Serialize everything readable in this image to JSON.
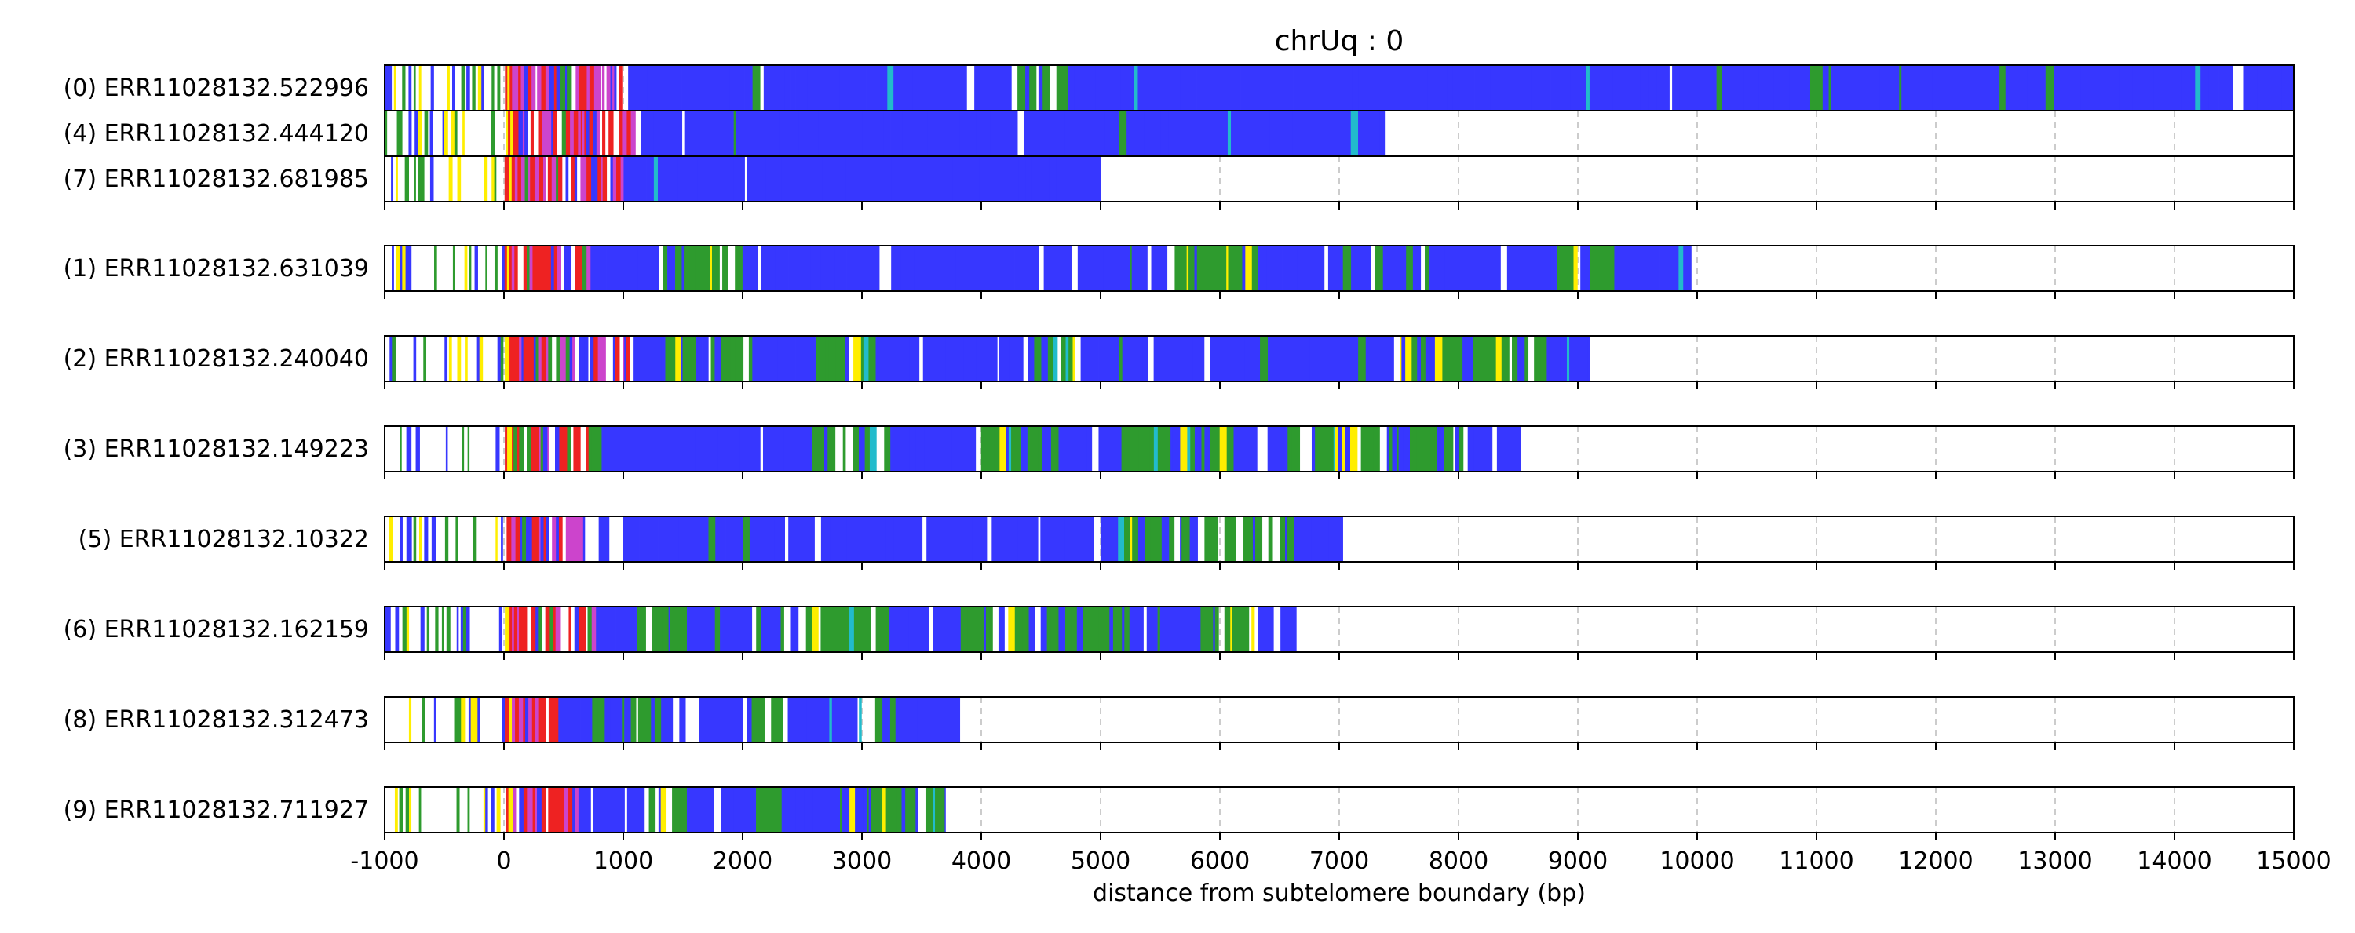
{
  "chart_data": {
    "type": "heatmap",
    "title": "chrUq : 0",
    "xlabel": "distance from subtelomere boundary (bp)",
    "ylabel": "",
    "xlim": [
      -1000,
      15000
    ],
    "xticks": [
      "-1000",
      "0",
      "1000",
      "2000",
      "3000",
      "4000",
      "5000",
      "6000",
      "7000",
      "8000",
      "9000",
      "10000",
      "11000",
      "12000",
      "13000",
      "14000",
      "15000"
    ],
    "grid": "vertical dashed at each x tick",
    "colors": {
      "blue": "#3737ff",
      "green": "#2e9b2e",
      "red": "#ee2222",
      "magenta": "#cc44cc",
      "yellow": "#ffee00",
      "cyan": "#22bbcc",
      "white": "#ffffff"
    },
    "groups": [
      [
        {
          "label": "(0) ERR11028132.522996",
          "end": 15000,
          "profile": {
            "dense_start": 1000,
            "green_zones": [
              [
                4200,
                4700
              ]
            ],
            "white_density": 0.15
          }
        },
        {
          "label": "(4) ERR11028132.444120",
          "end": 7380,
          "profile": {
            "dense_start": 1100,
            "green_zones": [],
            "white_density": 0.15
          }
        },
        {
          "label": "(7) ERR11028132.681985",
          "end": 5000,
          "profile": {
            "dense_start": 1000,
            "green_zones": [],
            "white_density": 0.15
          }
        }
      ],
      [
        {
          "label": "(1) ERR11028132.631039",
          "end": 9950,
          "profile": {
            "dense_start": 700,
            "green_zones": [
              [
                1200,
                1950
              ],
              [
                5500,
                6300
              ],
              [
                8800,
                9300
              ]
            ],
            "white_density": 0.35
          }
        }
      ],
      [
        {
          "label": "(2) ERR11028132.240040",
          "end": 9100,
          "profile": {
            "dense_start": 1050,
            "green_zones": [
              [
                1300,
                2000
              ],
              [
                2600,
                3100
              ],
              [
                4300,
                4800
              ],
              [
                7300,
                8700
              ]
            ],
            "white_density": 0.45
          }
        }
      ],
      [
        {
          "label": "(3) ERR11028132.149223",
          "end": 8520,
          "profile": {
            "dense_start": 750,
            "green_zones": [
              [
                2400,
                3200
              ],
              [
                3800,
                4600
              ],
              [
                5000,
                6100
              ],
              [
                6500,
                8000
              ]
            ],
            "white_density": 0.35
          }
        }
      ],
      [
        {
          "label": "(5) ERR11028132.10322",
          "end": 7030,
          "profile": {
            "dense_start": 700,
            "green_zones": [
              [
                5200,
                6600
              ]
            ],
            "white_density": 0.5
          }
        }
      ],
      [
        {
          "label": "(6) ERR11028132.162159",
          "end": 6640,
          "profile": {
            "dense_start": 750,
            "green_zones": [
              [
                1100,
                1500
              ],
              [
                2300,
                3100
              ],
              [
                3800,
                5200
              ],
              [
                5800,
                6300
              ]
            ],
            "white_density": 0.3
          }
        }
      ],
      [
        {
          "label": "(8) ERR11028132.312473",
          "end": 3820,
          "profile": {
            "dense_start": 450,
            "green_zones": [
              [
                700,
                1300
              ],
              [
                1900,
                2300
              ],
              [
                2800,
                3000
              ]
            ],
            "white_density": 0.35
          }
        }
      ],
      [
        {
          "label": "(9) ERR11028132.711927",
          "end": 3700,
          "profile": {
            "dense_start": 600,
            "green_zones": [
              [
                1100,
                1500
              ],
              [
                2000,
                2300
              ],
              [
                2600,
                3700
              ]
            ],
            "white_density": 0.35
          }
        }
      ]
    ]
  }
}
